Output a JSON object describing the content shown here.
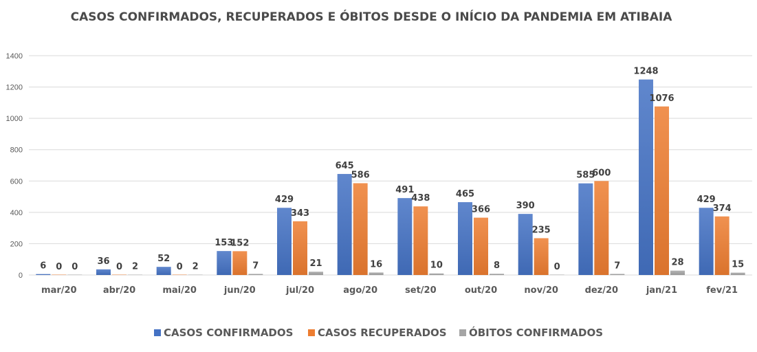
{
  "chart_data": {
    "type": "bar",
    "title": "CASOS CONFIRMADOS, RECUPERADOS E ÓBITOS DESDE O INÍCIO DA PANDEMIA EM ATIBAIA",
    "xlabel": "",
    "ylabel": "",
    "categories": [
      "mar/20",
      "abr/20",
      "mai/20",
      "jun/20",
      "jul/20",
      "ago/20",
      "set/20",
      "out/20",
      "nov/20",
      "dez/20",
      "jan/21",
      "fev/21"
    ],
    "series": [
      {
        "name": "CASOS CONFIRMADOS",
        "color": "#4472C4",
        "values": [
          6,
          36,
          52,
          153,
          429,
          645,
          491,
          465,
          390,
          585,
          1248,
          429
        ]
      },
      {
        "name": "CASOS RECUPERADOS",
        "color": "#ED7D31",
        "values": [
          0,
          0,
          0,
          152,
          343,
          586,
          438,
          366,
          235,
          600,
          1076,
          374
        ]
      },
      {
        "name": "ÓBITOS CONFIRMADOS",
        "color": "#A5A5A5",
        "values": [
          0,
          2,
          2,
          7,
          21,
          16,
          10,
          8,
          0,
          7,
          28,
          15
        ]
      }
    ],
    "ylim": [
      0,
      1400
    ],
    "yticks": [
      0,
      200,
      400,
      600,
      800,
      1000,
      1200,
      1400
    ],
    "grid": true,
    "legend": "bottom-center",
    "data_labels": true
  }
}
